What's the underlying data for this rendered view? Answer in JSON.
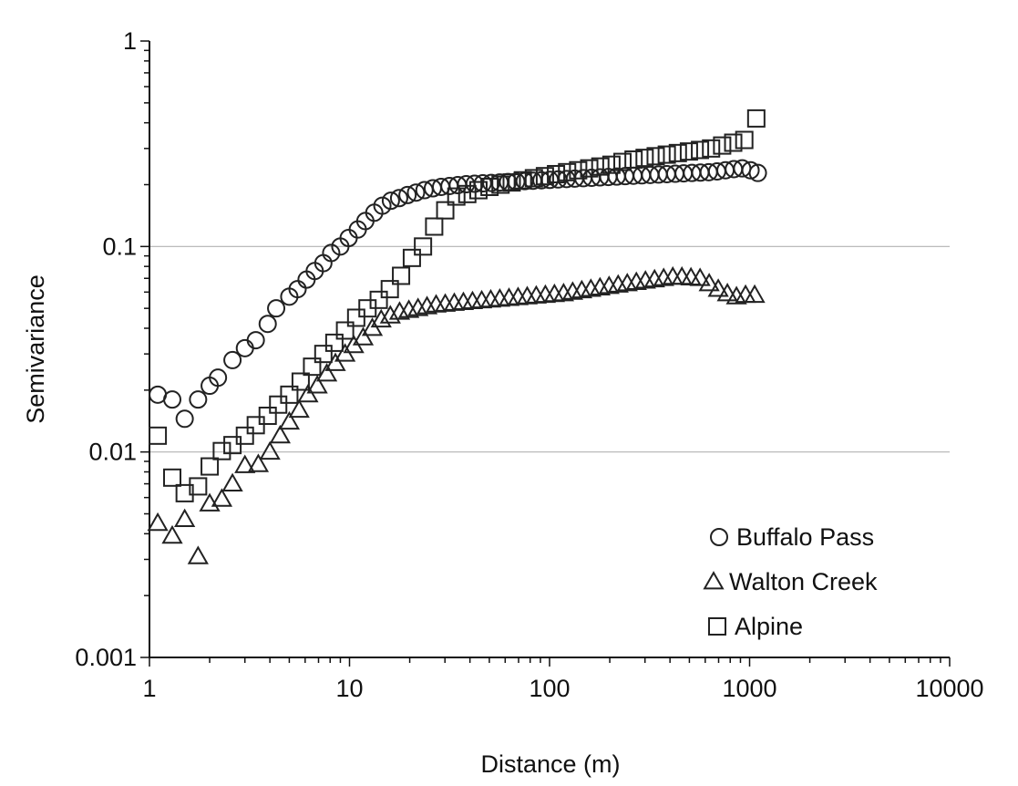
{
  "chart_data": {
    "type": "scatter",
    "title": "",
    "xlabel": "Distance (m)",
    "ylabel": "Semivariance",
    "xscale": "log",
    "yscale": "log",
    "xlim": [
      1,
      10000
    ],
    "ylim": [
      0.001,
      1
    ],
    "x_ticks": [
      1,
      10,
      100,
      1000,
      10000
    ],
    "x_tick_labels": [
      "1",
      "10",
      "100",
      "1000",
      "10000"
    ],
    "y_ticks": [
      0.001,
      0.01,
      0.1,
      1
    ],
    "y_tick_labels": [
      "0.001",
      "0.01",
      "0.1",
      "1"
    ],
    "horizontal_gridlines": [
      0.01,
      0.1
    ],
    "legend_position": "bottom-right",
    "series": [
      {
        "name": "Buffalo Pass",
        "marker": "circle",
        "color": "#222222",
        "x": [
          1.1,
          1.3,
          1.5,
          1.75,
          2.0,
          2.2,
          2.6,
          3.0,
          3.4,
          3.9,
          4.3,
          5.0,
          5.5,
          6.1,
          6.7,
          7.4,
          8.1,
          9.0,
          9.9,
          11.0,
          12.0,
          13.3,
          14.6,
          16.1,
          17.7,
          19.5,
          21.5,
          23.7,
          26.1,
          28.7,
          31.6,
          34.8,
          38.3,
          42.2,
          46.4,
          51.1,
          56.3,
          62.0,
          68.2,
          75.1,
          82.7,
          91.1,
          100.3,
          110.4,
          121.6,
          133.9,
          147.4,
          162.3,
          178.7,
          196.8,
          216.7,
          238.6,
          262.7,
          289.2,
          318.5,
          350.7,
          386.1,
          425.1,
          468.1,
          515.4,
          567.5,
          624.9,
          688.0,
          757.6,
          834.2,
          918.5,
          1011.3,
          1100
        ],
        "y": [
          0.019,
          0.018,
          0.0145,
          0.018,
          0.021,
          0.023,
          0.028,
          0.032,
          0.035,
          0.042,
          0.05,
          0.057,
          0.062,
          0.069,
          0.076,
          0.083,
          0.093,
          0.1,
          0.11,
          0.121,
          0.133,
          0.146,
          0.158,
          0.167,
          0.172,
          0.178,
          0.183,
          0.188,
          0.192,
          0.195,
          0.197,
          0.199,
          0.201,
          0.202,
          0.203,
          0.204,
          0.205,
          0.206,
          0.207,
          0.208,
          0.209,
          0.21,
          0.211,
          0.212,
          0.213,
          0.214,
          0.215,
          0.216,
          0.217,
          0.218,
          0.219,
          0.22,
          0.221,
          0.222,
          0.223,
          0.224,
          0.225,
          0.226,
          0.227,
          0.228,
          0.229,
          0.23,
          0.232,
          0.235,
          0.238,
          0.24,
          0.235,
          0.228
        ]
      },
      {
        "name": "Walton Creek",
        "marker": "triangle",
        "color": "#222222",
        "x": [
          1.1,
          1.3,
          1.5,
          1.75,
          2.0,
          2.3,
          2.6,
          3.0,
          3.5,
          4.0,
          4.5,
          5.0,
          5.6,
          6.2,
          6.9,
          7.7,
          8.5,
          9.5,
          10.5,
          11.7,
          13.0,
          14.4,
          16.0,
          17.8,
          19.8,
          22.0,
          24.4,
          27.1,
          30.1,
          33.4,
          37.1,
          41.2,
          45.8,
          50.8,
          56.4,
          62.7,
          69.6,
          77.3,
          85.8,
          95.3,
          105.8,
          117.5,
          130.5,
          144.9,
          160.9,
          178.7,
          198.4,
          220.3,
          244.6,
          271.6,
          301.6,
          334.9,
          371.9,
          413.0,
          458.6,
          509.2,
          565.4,
          627.9,
          697.2,
          774.2,
          859.7,
          954.6,
          1060
        ],
        "y": [
          0.0045,
          0.0039,
          0.0047,
          0.0031,
          0.0056,
          0.0059,
          0.007,
          0.0086,
          0.0087,
          0.01,
          0.012,
          0.014,
          0.016,
          0.019,
          0.021,
          0.024,
          0.027,
          0.03,
          0.033,
          0.036,
          0.04,
          0.044,
          0.046,
          0.048,
          0.049,
          0.05,
          0.051,
          0.052,
          0.0525,
          0.053,
          0.0535,
          0.054,
          0.0545,
          0.055,
          0.0555,
          0.056,
          0.0565,
          0.057,
          0.0575,
          0.058,
          0.0585,
          0.059,
          0.06,
          0.061,
          0.062,
          0.063,
          0.064,
          0.065,
          0.066,
          0.067,
          0.068,
          0.069,
          0.07,
          0.071,
          0.071,
          0.0705,
          0.07,
          0.066,
          0.062,
          0.059,
          0.057,
          0.058,
          0.058
        ]
      },
      {
        "name": "Alpine",
        "marker": "square",
        "color": "#222222",
        "x": [
          1.1,
          1.3,
          1.5,
          1.75,
          2.0,
          2.3,
          2.6,
          3.0,
          3.4,
          3.9,
          4.4,
          5.0,
          5.7,
          6.5,
          7.4,
          8.4,
          9.5,
          10.8,
          12.3,
          14.0,
          15.9,
          18.1,
          20.5,
          23.3,
          26.5,
          30.1,
          34.2,
          38.8,
          44.1,
          50.1,
          56.9,
          64.7,
          73.5,
          83.5,
          94.8,
          107.7,
          122.4,
          139.0,
          157.9,
          179.4,
          203.8,
          231.5,
          263.0,
          298.7,
          339.3,
          385.5,
          437.9,
          497.4,
          565.0,
          641.8,
          729.1,
          828.2,
          940.8,
          1080
        ],
        "y": [
          0.012,
          0.0075,
          0.0063,
          0.0068,
          0.0085,
          0.0101,
          0.0108,
          0.012,
          0.0135,
          0.015,
          0.017,
          0.019,
          0.022,
          0.026,
          0.03,
          0.034,
          0.039,
          0.045,
          0.05,
          0.055,
          0.062,
          0.072,
          0.088,
          0.1,
          0.125,
          0.15,
          0.175,
          0.18,
          0.188,
          0.195,
          0.2,
          0.205,
          0.21,
          0.215,
          0.22,
          0.225,
          0.23,
          0.235,
          0.24,
          0.245,
          0.25,
          0.258,
          0.265,
          0.27,
          0.275,
          0.28,
          0.285,
          0.29,
          0.295,
          0.3,
          0.31,
          0.32,
          0.33,
          0.42
        ]
      }
    ]
  }
}
